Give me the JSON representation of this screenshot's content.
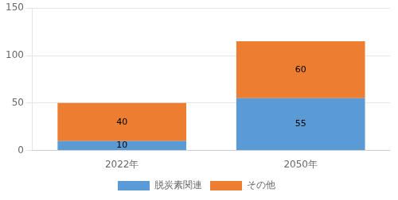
{
  "chart_data": {
    "type": "bar",
    "categories": [
      "2022年",
      "2050年"
    ],
    "series": [
      {
        "name": "脱炭素関連",
        "color": "#5B9BD5",
        "values": [
          10,
          55
        ]
      },
      {
        "name": "その他",
        "color": "#ED7D31",
        "values": [
          40,
          60
        ]
      }
    ],
    "ylim": [
      0,
      150
    ],
    "yticks": [
      0,
      50,
      100,
      150
    ],
    "grid": true,
    "stacked": true,
    "data_labels": true,
    "legend": "bottom"
  }
}
